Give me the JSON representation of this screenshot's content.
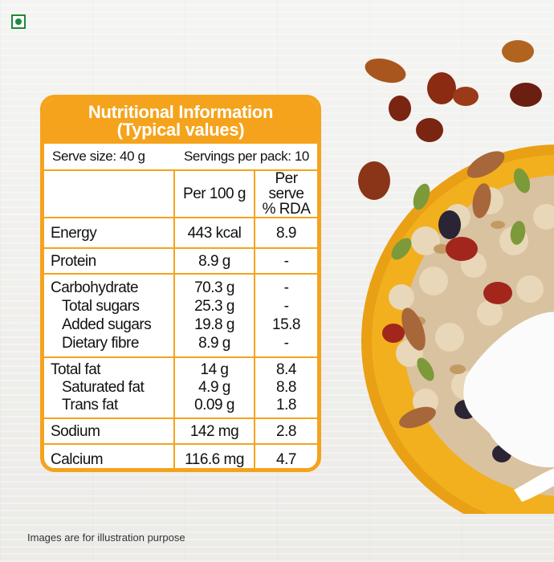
{
  "card": {
    "title_line1": "Nutritional Information",
    "title_line2": "(Typical values)",
    "serve_size": "Serve size: 40 g",
    "servings_per_pack": "Servings per pack: 10",
    "col_per100": "Per 100 g",
    "col_rda_line1": "Per serve",
    "col_rda_line2": "% RDA",
    "rows": [
      {
        "labels": [
          "Energy"
        ],
        "per100": [
          "443 kcal"
        ],
        "rda": [
          "8.9"
        ]
      },
      {
        "labels": [
          "Protein"
        ],
        "per100": [
          "8.9 g"
        ],
        "rda": [
          "-"
        ]
      },
      {
        "labels": [
          "Carbohydrate",
          "Total sugars",
          "Added sugars",
          "Dietary fibre"
        ],
        "per100": [
          "70.3 g",
          "25.3 g",
          "19.8 g",
          "8.9 g"
        ],
        "rda": [
          "-",
          "-",
          "15.8",
          "-"
        ]
      },
      {
        "labels": [
          "Total fat",
          "Saturated fat",
          "Trans fat"
        ],
        "per100": [
          "14 g",
          "4.9 g",
          "0.09 g"
        ],
        "rda": [
          "8.4",
          "8.8",
          "1.8"
        ]
      },
      {
        "labels": [
          "Sodium"
        ],
        "per100": [
          "142 mg"
        ],
        "rda": [
          "2.8"
        ]
      },
      {
        "labels": [
          "Calcium"
        ],
        "per100": [
          "116.6 mg"
        ],
        "rda": [
          "4.7"
        ]
      }
    ]
  },
  "footnote": "Images are for illustration purpose",
  "colors": {
    "accent": "#f5a31c",
    "veg_mark": "#1f8a3a",
    "bowl": "#f2b01e"
  }
}
